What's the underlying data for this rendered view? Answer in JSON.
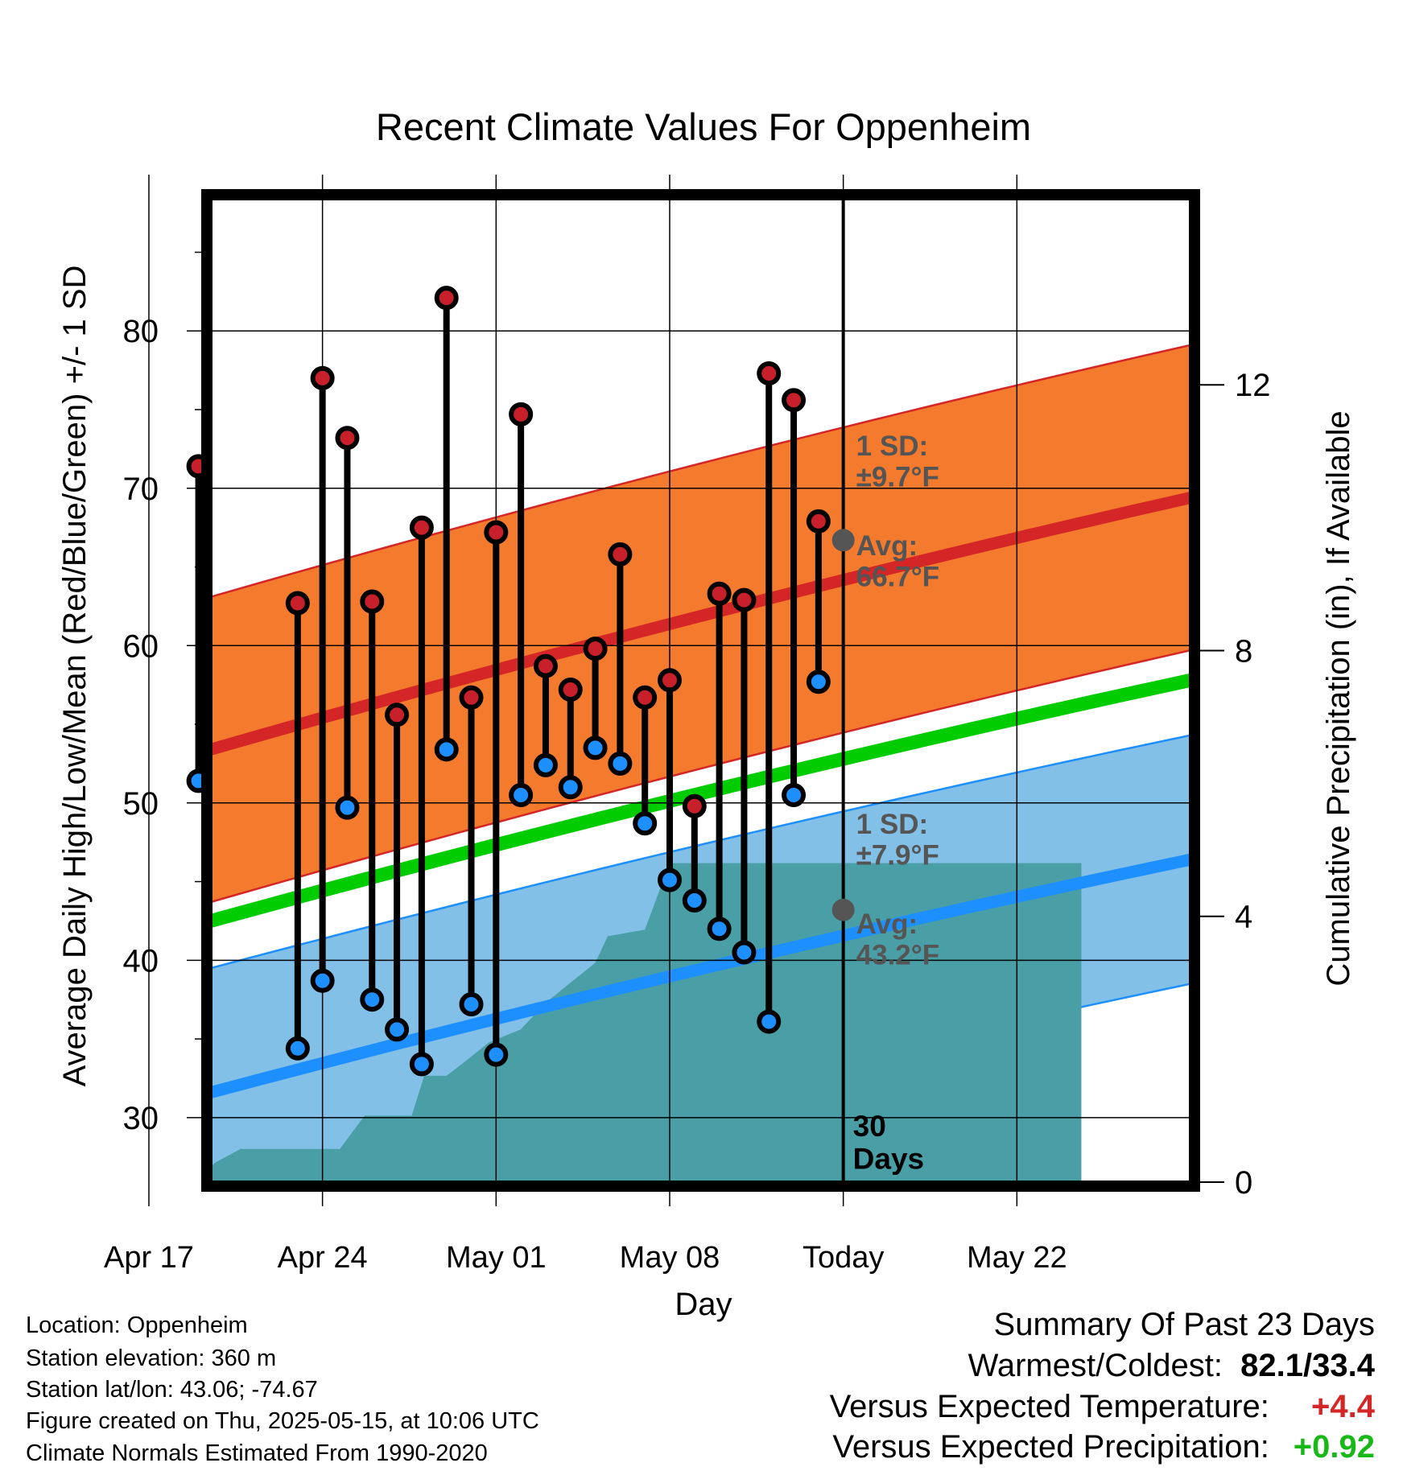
{
  "chart_data": {
    "type": "line",
    "title": "Recent Climate Values For Oppenheim",
    "xlabel": "Day",
    "ylabel_left": "Average Daily High/Low/Mean (Red/Blue/Green) +/- 1 SD",
    "ylabel_right": "Cumulative Precipitation (in), If Available",
    "ylim": [
      25.9,
      88.4
    ],
    "ylim_right": [
      0,
      14.8
    ],
    "xlim_days_from_today": [
      -25.5,
      14
    ],
    "yticks_left": [
      "30",
      "40",
      "50",
      "60",
      "70",
      "80"
    ],
    "yticks_right": [
      "0",
      "4",
      "8",
      "12"
    ],
    "xticks": [
      {
        "label": "Apr 17",
        "day": -28
      },
      {
        "label": "Apr 24",
        "day": -21
      },
      {
        "label": "May 01",
        "day": -14
      },
      {
        "label": "May 08",
        "day": -7
      },
      {
        "label": "Today",
        "day": 0
      },
      {
        "label": "May 22",
        "day": 7
      }
    ],
    "normals": {
      "mean_high": {
        "start": 53.4,
        "end": 69.4,
        "sd": 9.7,
        "color": "#d42626",
        "band_color": "#f47a2e"
      },
      "mean": {
        "start": 42.5,
        "end": 57.8,
        "color": "#00cc00"
      },
      "mean_low": {
        "start": 31.6,
        "end": 46.4,
        "sd": 7.9,
        "color": "#1e8fff",
        "band_color": "#82c0e8"
      }
    },
    "today_marker": {
      "label": "30\nDays"
    },
    "annotations": {
      "high_sd": "1 SD:\n±9.7°F",
      "high_avg": "Avg:\n66.7°F",
      "high_avg_value": 66.7,
      "low_sd": "1 SD:\n±7.9°F",
      "low_avg": "Avg:\n43.2°F",
      "low_avg_value": 43.2
    },
    "daily": {
      "day": [
        -26,
        -22,
        -21,
        -20,
        -19,
        -18,
        -17,
        -16,
        -15,
        -14,
        -13,
        -12,
        -11,
        -10,
        -9,
        -8,
        -7,
        -6,
        -5,
        -4,
        -3,
        -2,
        -1
      ],
      "high": [
        71.4,
        62.7,
        77.0,
        73.2,
        62.8,
        55.6,
        67.5,
        82.1,
        56.7,
        67.2,
        74.7,
        58.7,
        57.2,
        59.8,
        65.8,
        56.7,
        57.8,
        49.8,
        63.3,
        62.9,
        77.3,
        75.6,
        67.9
      ],
      "low": [
        51.4,
        34.4,
        38.7,
        49.7,
        37.5,
        35.6,
        33.4,
        53.4,
        37.2,
        34.0,
        50.5,
        52.4,
        51.0,
        53.5,
        52.5,
        48.7,
        45.1,
        43.8,
        42.0,
        40.5,
        36.1,
        50.5,
        57.7
      ]
    },
    "precip": {
      "day": [
        -28,
        -26.3,
        -25.3,
        -24.3,
        -22.5,
        -21.1,
        -20.3,
        -19.3,
        -18.8,
        -17.4,
        -16.9,
        -16,
        -15.3,
        -14.3,
        -13,
        -12,
        -11,
        -10,
        -9.5,
        -8,
        -7,
        -6,
        -4,
        0,
        9.6
      ],
      "cum": [
        0,
        0,
        0.3,
        0.5,
        0.5,
        0.5,
        0.5,
        1.0,
        1.0,
        1.0,
        1.6,
        1.6,
        1.8,
        2.1,
        2.3,
        2.7,
        3.0,
        3.3,
        3.7,
        3.8,
        4.8,
        4.8,
        4.8,
        4.8,
        4.8
      ]
    },
    "colors": {
      "high_marker": "#c8202a",
      "low_marker": "#1e8fff",
      "precip": "#4a9ea6",
      "annotation_text": "#555555"
    },
    "grid": true
  },
  "info": {
    "location": "Location: Oppenheim",
    "elevation": "Station elevation: 360 m",
    "latlon": "Station lat/lon: 43.06; -74.67",
    "created": "Figure created on Thu, 2025-05-15, at 10:06 UTC",
    "normals": "Climate Normals Estimated From 1990-2020"
  },
  "summary": {
    "title": "Summary Of Past 23 Days",
    "warmest_coldest_label": "Warmest/Coldest:",
    "warmest_coldest_value": "82.1/33.4",
    "temp_label": "Versus Expected Temperature:",
    "temp_value": "+4.4",
    "temp_color": "#d42626",
    "precip_label": "Versus Expected Precipitation:",
    "precip_value": "+0.92",
    "precip_color": "#18b818"
  }
}
